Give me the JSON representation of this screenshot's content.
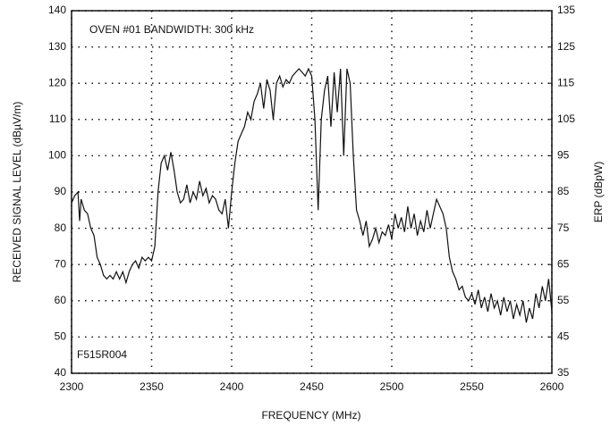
{
  "chart_data": {
    "type": "line",
    "xlabel": "FREQUENCY (MHz)",
    "ylabel": "RECEIVED SIGNAL LEVEL (dBµV/m)",
    "y2label": "ERP (dBpW)",
    "annotations": [
      "OVEN #01 BANDWIDTH: 300 kHz",
      "F515R004"
    ],
    "xlim": [
      2300,
      2600
    ],
    "xticks": [
      2300,
      2350,
      2400,
      2450,
      2500,
      2550,
      2600
    ],
    "ylim": [
      40,
      140
    ],
    "yticks": [
      40,
      50,
      60,
      70,
      80,
      90,
      100,
      110,
      120,
      130,
      140
    ],
    "y2lim": [
      35,
      135
    ],
    "y2ticks": [
      35,
      45,
      55,
      65,
      75,
      85,
      95,
      105,
      115,
      125,
      135
    ],
    "grid": true,
    "x": [
      2300,
      2302,
      2304,
      2305,
      2306,
      2308,
      2310,
      2312,
      2314,
      2316,
      2318,
      2320,
      2322,
      2324,
      2326,
      2328,
      2330,
      2332,
      2334,
      2336,
      2338,
      2340,
      2342,
      2344,
      2346,
      2348,
      2350,
      2352,
      2354,
      2356,
      2358,
      2360,
      2362,
      2364,
      2366,
      2368,
      2370,
      2372,
      2374,
      2376,
      2378,
      2380,
      2382,
      2384,
      2386,
      2388,
      2390,
      2392,
      2394,
      2396,
      2398,
      2400,
      2402,
      2404,
      2406,
      2408,
      2410,
      2412,
      2414,
      2416,
      2418,
      2420,
      2422,
      2424,
      2426,
      2428,
      2430,
      2432,
      2434,
      2436,
      2438,
      2440,
      2442,
      2444,
      2446,
      2448,
      2450,
      2452,
      2454,
      2456,
      2458,
      2460,
      2462,
      2464,
      2466,
      2468,
      2470,
      2472,
      2474,
      2476,
      2478,
      2480,
      2482,
      2484,
      2486,
      2488,
      2490,
      2492,
      2494,
      2496,
      2498,
      2500,
      2502,
      2504,
      2506,
      2508,
      2510,
      2512,
      2514,
      2516,
      2518,
      2520,
      2522,
      2524,
      2526,
      2528,
      2530,
      2532,
      2534,
      2536,
      2538,
      2540,
      2542,
      2544,
      2546,
      2548,
      2550,
      2552,
      2554,
      2556,
      2558,
      2560,
      2562,
      2564,
      2566,
      2568,
      2570,
      2572,
      2574,
      2576,
      2578,
      2580,
      2582,
      2584,
      2586,
      2588,
      2590,
      2592,
      2594,
      2596,
      2598,
      2600
    ],
    "series": [
      {
        "color": "#111111",
        "values": [
          87,
          89,
          90,
          82,
          88,
          85,
          84,
          80,
          78,
          72,
          70,
          67,
          66,
          67,
          66,
          68,
          66,
          68,
          65,
          68,
          70,
          71,
          69,
          72,
          71,
          72,
          71,
          75,
          90,
          98,
          100,
          96,
          101,
          96,
          90,
          87,
          88,
          92,
          87,
          90,
          88,
          93,
          89,
          91,
          87,
          89,
          88,
          85,
          84,
          88,
          80,
          90,
          98,
          104,
          106,
          108,
          112,
          110,
          115,
          117,
          120,
          113,
          121,
          118,
          110,
          120,
          122,
          119,
          121,
          120,
          122,
          123,
          124,
          123,
          122,
          124,
          122,
          110,
          85,
          110,
          118,
          122,
          108,
          123,
          112,
          124,
          100,
          124,
          120,
          100,
          85,
          82,
          78,
          82,
          75,
          77,
          80,
          76,
          79,
          78,
          81,
          77,
          84,
          80,
          83,
          79,
          86,
          80,
          84,
          78,
          82,
          79,
          85,
          80,
          84,
          88,
          86,
          84,
          80,
          72,
          68,
          66,
          63,
          64,
          61,
          60,
          62,
          59,
          63,
          58,
          61,
          57,
          62,
          58,
          60,
          56,
          61,
          57,
          60,
          55,
          59,
          56,
          60,
          54,
          58,
          55,
          62,
          58,
          64,
          60,
          66,
          57
        ]
      }
    ]
  }
}
